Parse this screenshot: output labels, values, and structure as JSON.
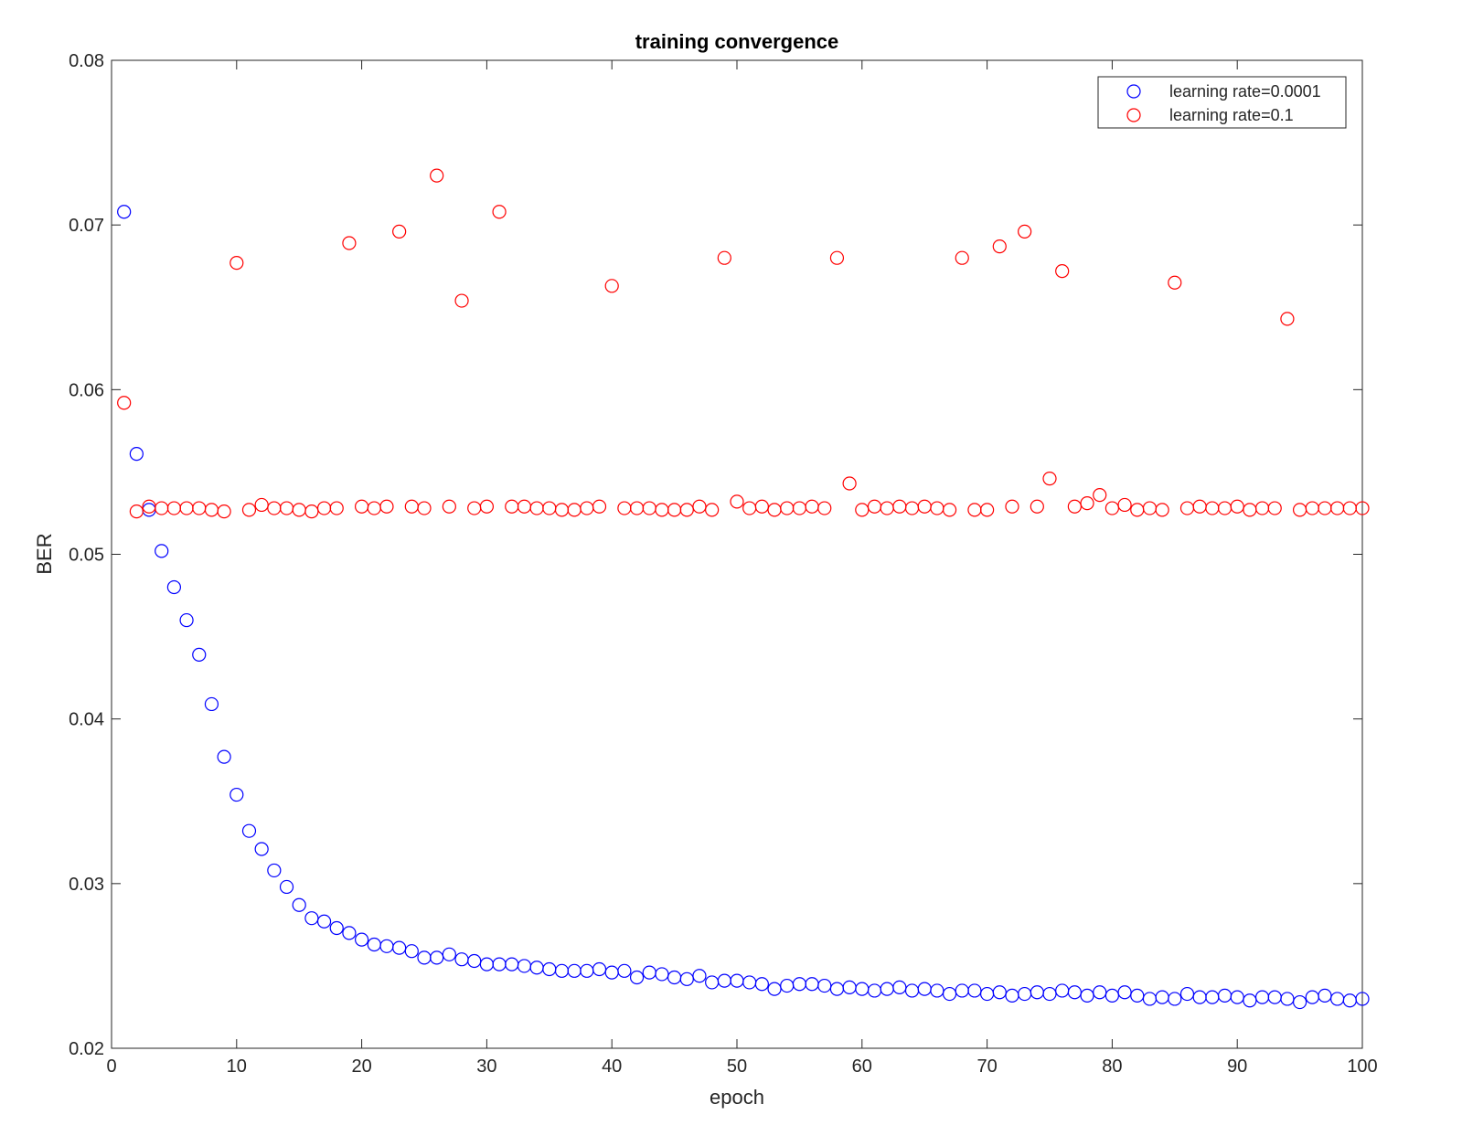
{
  "chart_data": {
    "type": "scatter",
    "title": "training convergence",
    "xlabel": "epoch",
    "ylabel": "BER",
    "xlim": [
      0,
      100
    ],
    "ylim": [
      0.02,
      0.08
    ],
    "xticks": [
      0,
      10,
      20,
      30,
      40,
      50,
      60,
      70,
      80,
      90,
      100
    ],
    "xtick_labels": [
      "0",
      "10",
      "20",
      "30",
      "40",
      "50",
      "60",
      "70",
      "80",
      "90",
      "100"
    ],
    "yticks": [
      0.02,
      0.03,
      0.04,
      0.05,
      0.06,
      0.07,
      0.08
    ],
    "ytick_labels": [
      "0.02",
      "0.03",
      "0.04",
      "0.05",
      "0.06",
      "0.07",
      "0.08"
    ],
    "grid": false,
    "legend_position": "top-right",
    "marker": "open-circle",
    "series": [
      {
        "name": "learning rate=0.0001",
        "color": "#0000ff",
        "x": [
          1,
          2,
          3,
          4,
          5,
          6,
          7,
          8,
          9,
          10,
          11,
          12,
          13,
          14,
          15,
          16,
          17,
          18,
          19,
          20,
          21,
          22,
          23,
          24,
          25,
          26,
          27,
          28,
          29,
          30,
          31,
          32,
          33,
          34,
          35,
          36,
          37,
          38,
          39,
          40,
          41,
          42,
          43,
          44,
          45,
          46,
          47,
          48,
          49,
          50,
          51,
          52,
          53,
          54,
          55,
          56,
          57,
          58,
          59,
          60,
          61,
          62,
          63,
          64,
          65,
          66,
          67,
          68,
          69,
          70,
          71,
          72,
          73,
          74,
          75,
          76,
          77,
          78,
          79,
          80,
          81,
          82,
          83,
          84,
          85,
          86,
          87,
          88,
          89,
          90,
          91,
          92,
          93,
          94,
          95,
          96,
          97,
          98,
          99,
          100
        ],
        "y": [
          0.0708,
          0.0561,
          0.0527,
          0.0502,
          0.048,
          0.046,
          0.0439,
          0.0409,
          0.0377,
          0.0354,
          0.0332,
          0.0321,
          0.0308,
          0.0298,
          0.0287,
          0.0279,
          0.0277,
          0.0273,
          0.027,
          0.0266,
          0.0263,
          0.0262,
          0.0261,
          0.0259,
          0.0255,
          0.0255,
          0.0257,
          0.0254,
          0.0253,
          0.0251,
          0.0251,
          0.0251,
          0.025,
          0.0249,
          0.0248,
          0.0247,
          0.0247,
          0.0247,
          0.0248,
          0.0246,
          0.0247,
          0.0243,
          0.0246,
          0.0245,
          0.0243,
          0.0242,
          0.0244,
          0.024,
          0.0241,
          0.0241,
          0.024,
          0.0239,
          0.0236,
          0.0238,
          0.0239,
          0.0239,
          0.0238,
          0.0236,
          0.0237,
          0.0236,
          0.0235,
          0.0236,
          0.0237,
          0.0235,
          0.0236,
          0.0235,
          0.0233,
          0.0235,
          0.0235,
          0.0233,
          0.0234,
          0.0232,
          0.0233,
          0.0234,
          0.0233,
          0.0235,
          0.0234,
          0.0232,
          0.0234,
          0.0232,
          0.0234,
          0.0232,
          0.023,
          0.0231,
          0.023,
          0.0233,
          0.0231,
          0.0231,
          0.0232,
          0.0231,
          0.0229,
          0.0231,
          0.0231,
          0.023,
          0.0228,
          0.0231,
          0.0232,
          0.023,
          0.0229,
          0.023
        ]
      },
      {
        "name": "learning rate=0.1",
        "color": "#ff0000",
        "x": [
          1,
          2,
          3,
          4,
          5,
          6,
          7,
          8,
          9,
          10,
          11,
          12,
          13,
          14,
          15,
          16,
          17,
          18,
          19,
          20,
          21,
          22,
          23,
          24,
          25,
          26,
          27,
          28,
          29,
          30,
          31,
          32,
          33,
          34,
          35,
          36,
          37,
          38,
          39,
          40,
          41,
          42,
          43,
          44,
          45,
          46,
          47,
          48,
          49,
          50,
          51,
          52,
          53,
          54,
          55,
          56,
          57,
          58,
          59,
          60,
          61,
          62,
          63,
          64,
          65,
          66,
          67,
          68,
          69,
          70,
          71,
          72,
          73,
          74,
          75,
          76,
          77,
          78,
          79,
          80,
          81,
          82,
          83,
          84,
          85,
          86,
          87,
          88,
          89,
          90,
          91,
          92,
          93,
          94,
          95,
          96,
          97,
          98,
          99,
          100
        ],
        "y": [
          0.0592,
          0.0526,
          0.0529,
          0.0528,
          0.0528,
          0.0528,
          0.0528,
          0.0527,
          0.0526,
          0.0677,
          0.0527,
          0.053,
          0.0528,
          0.0528,
          0.0527,
          0.0526,
          0.0528,
          0.0528,
          0.0689,
          0.0529,
          0.0528,
          0.0529,
          0.0696,
          0.0529,
          0.0528,
          0.073,
          0.0529,
          0.0654,
          0.0528,
          0.0529,
          0.0708,
          0.0529,
          0.0529,
          0.0528,
          0.0528,
          0.0527,
          0.0527,
          0.0528,
          0.0529,
          0.0663,
          0.0528,
          0.0528,
          0.0528,
          0.0527,
          0.0527,
          0.0527,
          0.0529,
          0.0527,
          0.068,
          0.0532,
          0.0528,
          0.0529,
          0.0527,
          0.0528,
          0.0528,
          0.0529,
          0.0528,
          0.068,
          0.0543,
          0.0527,
          0.0529,
          0.0528,
          0.0529,
          0.0528,
          0.0529,
          0.0528,
          0.0527,
          0.068,
          0.0527,
          0.0527,
          0.0687,
          0.0529,
          0.0696,
          0.0529,
          0.0546,
          0.0672,
          0.0529,
          0.0531,
          0.0536,
          0.0528,
          0.053,
          0.0527,
          0.0528,
          0.0527,
          0.0665,
          0.0528,
          0.0529,
          0.0528,
          0.0528,
          0.0529,
          0.0527,
          0.0528,
          0.0528,
          0.0643,
          0.0527,
          0.0528,
          0.0528,
          0.0528,
          0.0528,
          0.0528
        ]
      }
    ]
  }
}
